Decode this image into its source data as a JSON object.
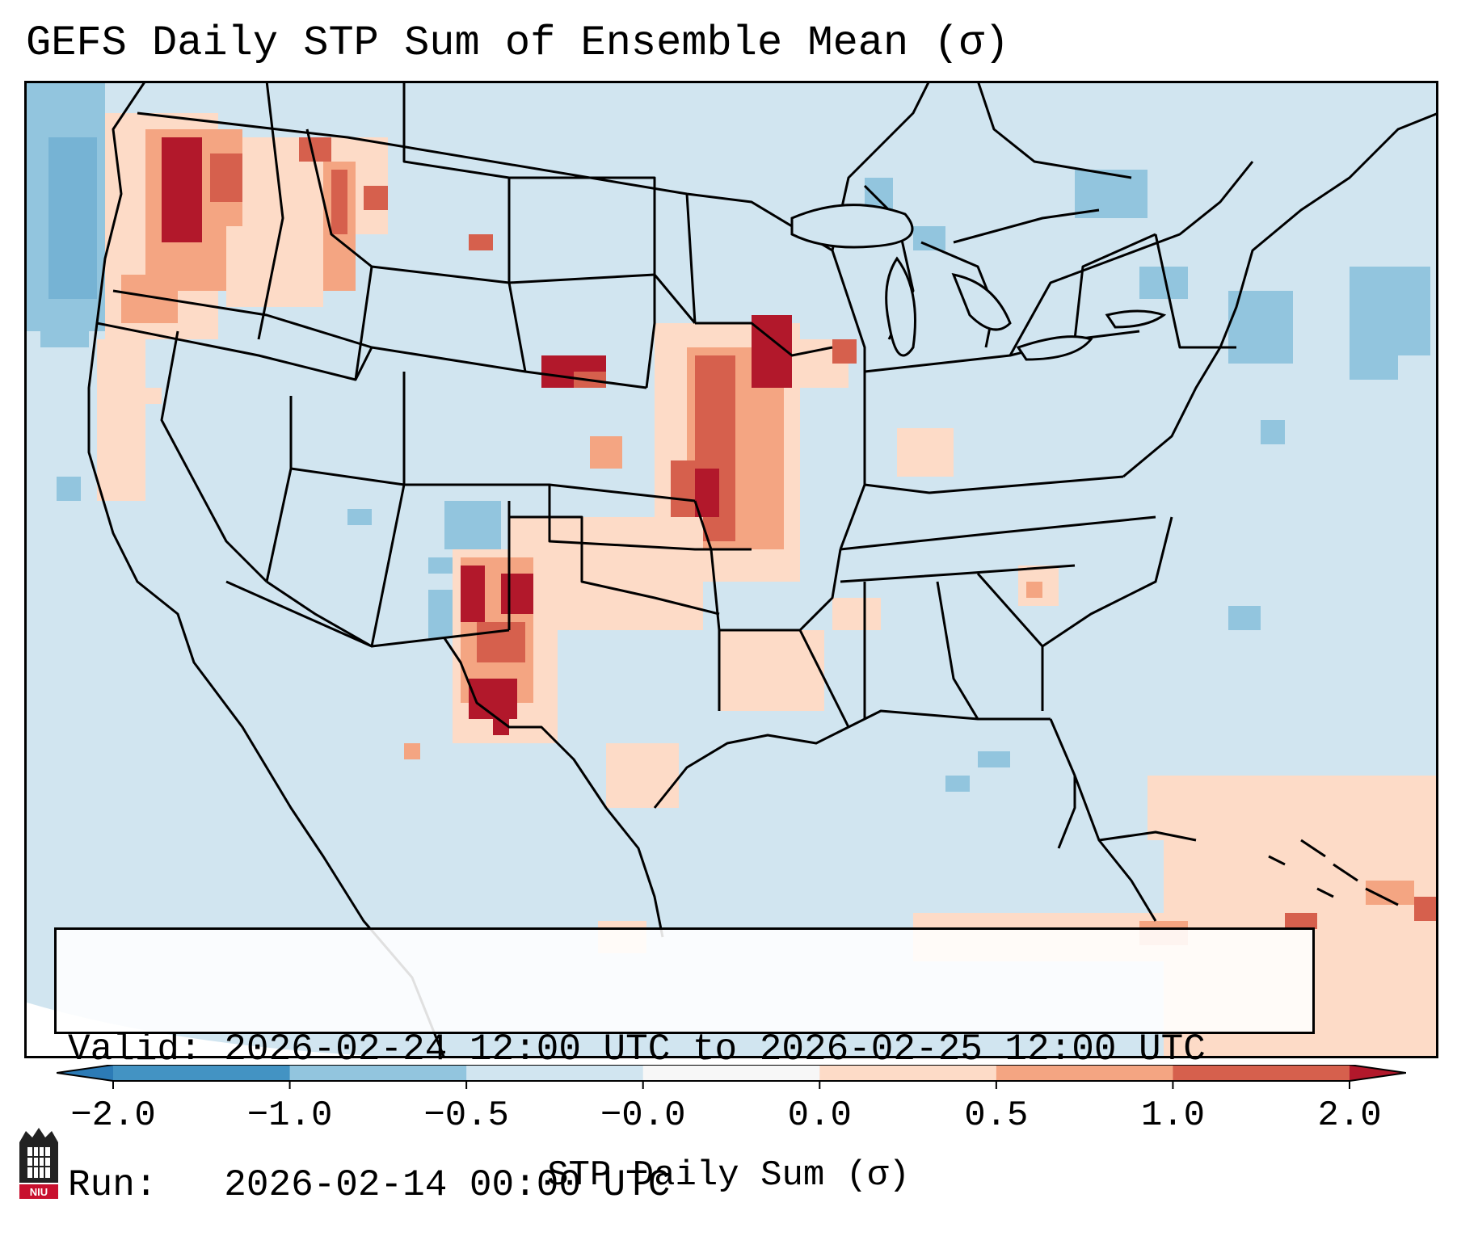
{
  "title": "GEFS Daily STP Sum of Ensemble Mean (σ)",
  "info": {
    "valid_label": "Valid:",
    "valid_value": "2026-02-24 12:00 UTC to 2026-02-25 12:00 UTC",
    "run_label": "Run:",
    "run_value": "2026-02-14 00:00 UTC"
  },
  "colorbar": {
    "label": "STP Daily Sum (σ)",
    "ticks": [
      "−2.0",
      "−1.0",
      "−0.5",
      "−0.0",
      "0.0",
      "0.5",
      "1.0",
      "2.0"
    ],
    "bins": [
      {
        "range": "< -2.0",
        "color": "#2c7bb6"
      },
      {
        "range": "-2.0 to -1.0",
        "color": "#4393c3"
      },
      {
        "range": "-1.0 to -0.5",
        "color": "#92c5de"
      },
      {
        "range": "-0.5 to -0.0",
        "color": "#d1e5f0"
      },
      {
        "range": "-0.0 to 0.0",
        "color": "#f7f7f7"
      },
      {
        "range": "0.0 to 0.5",
        "color": "#fddbc7"
      },
      {
        "range": "0.5 to 1.0",
        "color": "#f4a582"
      },
      {
        "range": "1.0 to 2.0",
        "color": "#d6604d"
      },
      {
        "range": "> 2.0",
        "color": "#b2182b"
      }
    ]
  },
  "map": {
    "background_color": "#d1e5f0",
    "features": {
      "highlights": [
        {
          "region": "Washington / Oregon coast",
          "level": "high"
        },
        {
          "region": "Northern Idaho",
          "level": "moderate"
        },
        {
          "region": "Iowa / Missouri",
          "level": "high"
        },
        {
          "region": "Kansas / Oklahoma",
          "level": "moderate"
        },
        {
          "region": "Eastern New Mexico / West Texas",
          "level": "high"
        },
        {
          "region": "Gulf Coast",
          "level": "low"
        }
      ],
      "negative_anomalies": [
        {
          "region": "Pacific Ocean off Northwest",
          "level": "low"
        },
        {
          "region": "Colorado / New Mexico",
          "level": "low"
        },
        {
          "region": "Northeast / New England",
          "level": "low"
        },
        {
          "region": "Great Lakes",
          "level": "low"
        }
      ]
    }
  },
  "logo": {
    "text": "NIU"
  }
}
